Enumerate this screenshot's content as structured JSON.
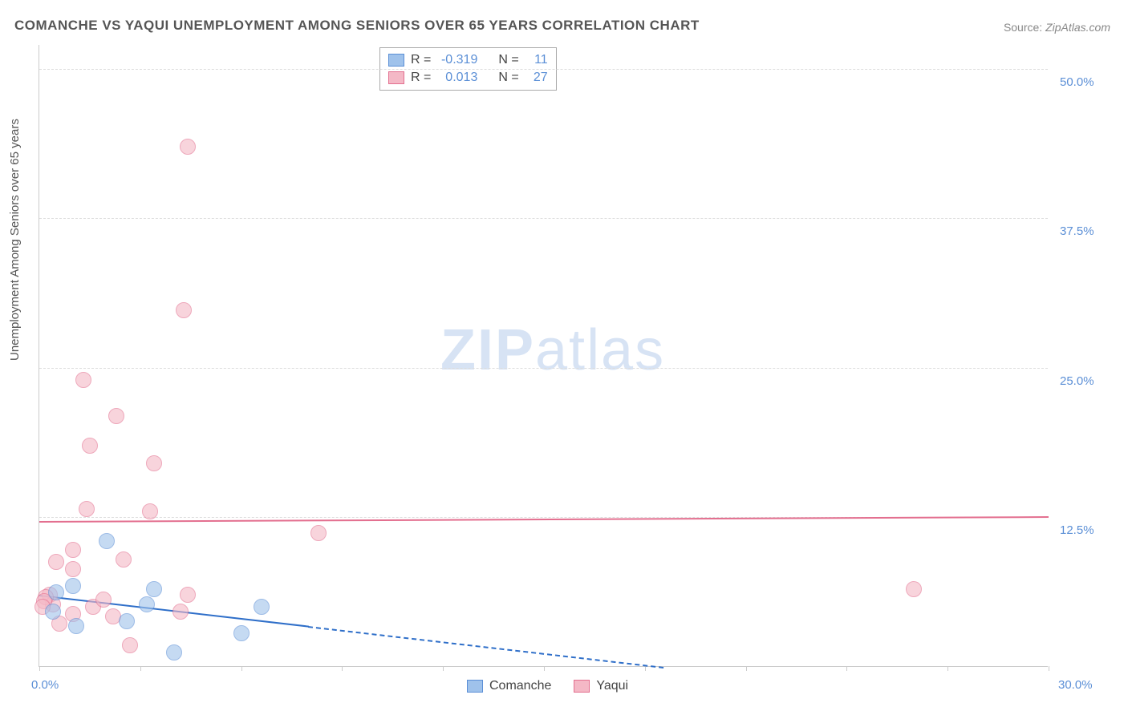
{
  "title": "COMANCHE VS YAQUI UNEMPLOYMENT AMONG SENIORS OVER 65 YEARS CORRELATION CHART",
  "source_label": "Source:",
  "source_value": "ZipAtlas.com",
  "ylabel": "Unemployment Among Seniors over 65 years",
  "watermark_bold": "ZIP",
  "watermark_light": "atlas",
  "chart": {
    "type": "scatter",
    "xlim": [
      0,
      30
    ],
    "ylim": [
      0,
      52
    ],
    "yticks": [
      12.5,
      25.0,
      37.5,
      50.0
    ],
    "ytick_labels": [
      "12.5%",
      "25.0%",
      "37.5%",
      "50.0%"
    ],
    "xtick_labels": [
      "0.0%",
      "30.0%"
    ],
    "xticks_minor": [
      0,
      3,
      6,
      9,
      12,
      15,
      18,
      21,
      24,
      27,
      30
    ],
    "background_color": "#ffffff",
    "grid_color": "#dddddd",
    "axis_color": "#cccccc",
    "tick_label_color": "#5b8fd6",
    "series": [
      {
        "name": "Comanche",
        "fill_color": "#9fc2eb",
        "stroke_color": "#5b8fd6",
        "fill_opacity": 0.6,
        "marker_radius": 10,
        "R": "-0.319",
        "N": "11",
        "trend": {
          "y_at_x0": 6.0,
          "y_at_x30": -3.7,
          "solid_until_x": 8.0,
          "color": "#2f6fc9"
        },
        "points": [
          {
            "x": 2.0,
            "y": 10.5
          },
          {
            "x": 1.0,
            "y": 6.8
          },
          {
            "x": 3.4,
            "y": 6.5
          },
          {
            "x": 0.5,
            "y": 6.2
          },
          {
            "x": 3.2,
            "y": 5.2
          },
          {
            "x": 0.4,
            "y": 4.6
          },
          {
            "x": 2.6,
            "y": 3.8
          },
          {
            "x": 1.1,
            "y": 3.4
          },
          {
            "x": 6.6,
            "y": 5.0
          },
          {
            "x": 6.0,
            "y": 2.8
          },
          {
            "x": 4.0,
            "y": 1.2
          }
        ]
      },
      {
        "name": "Yaqui",
        "fill_color": "#f4b8c6",
        "stroke_color": "#e36f8f",
        "fill_opacity": 0.6,
        "marker_radius": 10,
        "R": "0.013",
        "N": "27",
        "trend": {
          "y_at_x0": 12.2,
          "y_at_x30": 12.6,
          "solid_until_x": 30,
          "color": "#e36f8f"
        },
        "points": [
          {
            "x": 4.4,
            "y": 43.5
          },
          {
            "x": 4.3,
            "y": 29.8
          },
          {
            "x": 1.3,
            "y": 24.0
          },
          {
            "x": 2.3,
            "y": 21.0
          },
          {
            "x": 1.5,
            "y": 18.5
          },
          {
            "x": 3.4,
            "y": 17.0
          },
          {
            "x": 1.4,
            "y": 13.2
          },
          {
            "x": 3.3,
            "y": 13.0
          },
          {
            "x": 8.3,
            "y": 11.2
          },
          {
            "x": 1.0,
            "y": 9.8
          },
          {
            "x": 0.5,
            "y": 8.8
          },
          {
            "x": 1.0,
            "y": 8.2
          },
          {
            "x": 2.5,
            "y": 9.0
          },
          {
            "x": 0.3,
            "y": 6.0
          },
          {
            "x": 0.4,
            "y": 5.2
          },
          {
            "x": 0.2,
            "y": 5.8
          },
          {
            "x": 1.6,
            "y": 5.0
          },
          {
            "x": 1.0,
            "y": 4.4
          },
          {
            "x": 1.9,
            "y": 5.6
          },
          {
            "x": 2.2,
            "y": 4.2
          },
          {
            "x": 4.4,
            "y": 6.0
          },
          {
            "x": 4.2,
            "y": 4.6
          },
          {
            "x": 2.7,
            "y": 1.8
          },
          {
            "x": 0.6,
            "y": 3.6
          },
          {
            "x": 0.15,
            "y": 5.5
          },
          {
            "x": 0.1,
            "y": 5.0
          },
          {
            "x": 26.0,
            "y": 6.5
          }
        ]
      }
    ]
  },
  "stats_labels": {
    "R": "R =",
    "N": "N ="
  },
  "legend": {
    "items": [
      {
        "label": "Comanche",
        "fill": "#9fc2eb",
        "stroke": "#5b8fd6"
      },
      {
        "label": "Yaqui",
        "fill": "#f4b8c6",
        "stroke": "#e36f8f"
      }
    ]
  }
}
